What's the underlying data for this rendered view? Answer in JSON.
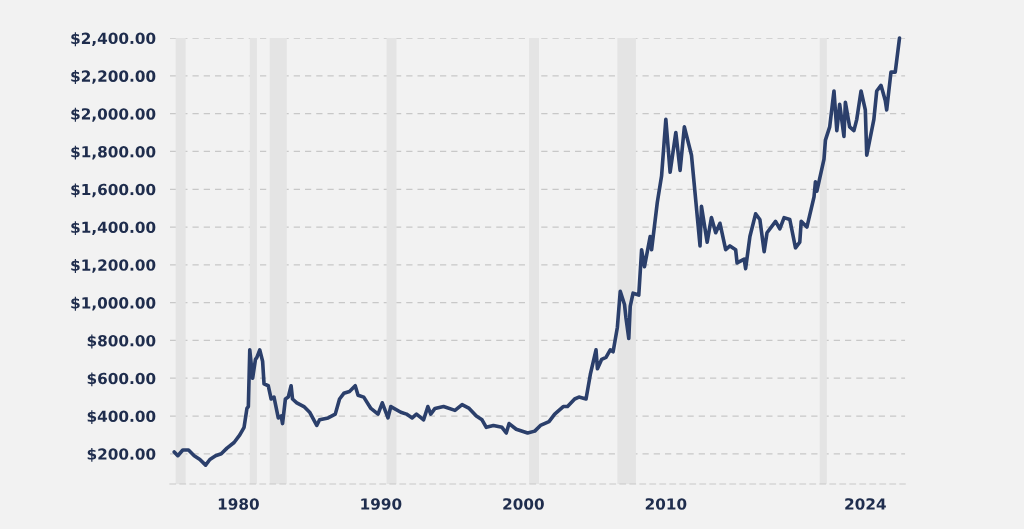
{
  "chart_data": {
    "type": "line",
    "x": [
      1975.5,
      1975.75,
      1976.1,
      1976.5,
      1976.9,
      1977.3,
      1977.7,
      1978.0,
      1978.4,
      1978.8,
      1979.2,
      1979.7,
      1980.1,
      1980.4,
      1980.6,
      1980.7,
      1980.8,
      1981.0,
      1981.2,
      1981.3,
      1981.5,
      1981.7,
      1981.8,
      1982.1,
      1982.3,
      1982.5,
      1982.8,
      1983.0,
      1983.1,
      1983.3,
      1983.5,
      1983.7,
      1983.8,
      1984.1,
      1984.6,
      1985.0,
      1985.5,
      1985.7,
      1986.3,
      1986.8,
      1987.1,
      1987.4,
      1987.8,
      1988.2,
      1988.4,
      1988.8,
      1989.3,
      1989.8,
      1990.1,
      1990.5,
      1990.7,
      1991.4,
      1991.8,
      1992.2,
      1992.5,
      1993.0,
      1993.3,
      1993.5,
      1993.8,
      1994.4,
      1995.2,
      1995.7,
      1996.2,
      1996.7,
      1997.1,
      1997.4,
      1997.9,
      1998.5,
      1998.8,
      1999.0,
      1999.5,
      2000.3,
      2000.8,
      2001.2,
      2001.8,
      2002.2,
      2002.8,
      2003.1,
      2003.6,
      2003.9,
      2004.4,
      2004.7,
      2005.1,
      2005.2,
      2005.5,
      2005.8,
      2006.1,
      2006.3,
      2006.6,
      2006.8,
      2007.1,
      2007.2,
      2007.4,
      2007.5,
      2007.7,
      2008.1,
      2008.3,
      2008.5,
      2008.9,
      2009.0,
      2009.4,
      2009.7,
      2010.0,
      2010.3,
      2010.7,
      2011.0,
      2011.3,
      2011.8,
      2012.4,
      2012.5,
      2012.9,
      2013.2,
      2013.5,
      2013.8,
      2014.2,
      2014.5,
      2014.9,
      2015.0,
      2015.5,
      2015.6,
      2015.9,
      2016.3,
      2016.6,
      2016.9,
      2017.1,
      2017.7,
      2018.0,
      2018.3,
      2018.7,
      2019.1,
      2019.4,
      2019.5,
      2019.9,
      2020.4,
      2020.5,
      2020.6,
      2021.1,
      2021.2,
      2021.5,
      2021.8,
      2022.0,
      2022.2,
      2022.5,
      2022.6,
      2022.9,
      2023.2,
      2023.4,
      2023.7,
      2024.0,
      2024.1,
      2024.6,
      2024.8,
      2025.1,
      2025.4,
      2025.5,
      2025.8,
      2026.1,
      2026.4
    ],
    "series": [
      {
        "color": "#2b3f6b",
        "values": [
          210,
          190,
          220,
          220,
          190,
          170,
          140,
          170,
          190,
          200,
          230,
          260,
          300,
          340,
          440,
          450,
          750,
          600,
          700,
          710,
          750,
          690,
          570,
          560,
          490,
          500,
          390,
          400,
          360,
          490,
          500,
          560,
          490,
          470,
          450,
          420,
          350,
          380,
          390,
          410,
          490,
          520,
          530,
          560,
          510,
          500,
          440,
          410,
          470,
          390,
          450,
          420,
          410,
          390,
          410,
          380,
          450,
          410,
          440,
          450,
          430,
          460,
          440,
          400,
          380,
          340,
          350,
          340,
          310,
          360,
          330,
          310,
          320,
          350,
          370,
          410,
          450,
          450,
          490,
          500,
          490,
          620,
          750,
          650,
          700,
          710,
          750,
          740,
          870,
          1060,
          990,
          920,
          810,
          980,
          1050,
          1040,
          1280,
          1190,
          1350,
          1280,
          1530,
          1670,
          1970,
          1690,
          1900,
          1700,
          1930,
          1780,
          1300,
          1510,
          1320,
          1450,
          1370,
          1420,
          1280,
          1300,
          1280,
          1210,
          1230,
          1180,
          1350,
          1470,
          1440,
          1270,
          1370,
          1430,
          1390,
          1450,
          1440,
          1290,
          1320,
          1430,
          1400,
          1560,
          1640,
          1590,
          1760,
          1860,
          1930,
          2120,
          1910,
          2050,
          1880,
          2060,
          1930,
          1910,
          1970,
          2120,
          2020,
          1780,
          1970,
          2120,
          2150,
          2070,
          2020,
          2220,
          2220,
          2400
        ]
      }
    ],
    "xlim": [
      1975.2,
      2026.8
    ],
    "xticks": [
      1980,
      1990,
      2000,
      2010,
      2024
    ],
    "ylim": [
      40,
      2400
    ],
    "yticks": [
      {
        "value": 200,
        "label": "$200.00"
      },
      {
        "value": 400,
        "label": "$400.00"
      },
      {
        "value": 600,
        "label": "$600.00"
      },
      {
        "value": 800,
        "label": "$800.00"
      },
      {
        "value": 1000,
        "label": "$1,000.00"
      },
      {
        "value": 1200,
        "label": "$1,200.00"
      },
      {
        "value": 1400,
        "label": "$1,400.00"
      },
      {
        "value": 1600,
        "label": "$1,600.00"
      },
      {
        "value": 1800,
        "label": "$1,800.00"
      },
      {
        "value": 2000,
        "label": "$2,000.00"
      },
      {
        "value": 2200,
        "label": "$2,200.00"
      },
      {
        "value": 2400,
        "label": "$2,400.00"
      }
    ],
    "bands": [
      {
        "axis": "x",
        "from": 1975.6,
        "to": 1976.3,
        "color": "#e4e4e4"
      },
      {
        "axis": "x",
        "from": 1980.8,
        "to": 1981.3,
        "color": "#e4e4e4"
      },
      {
        "axis": "x",
        "from": 1982.2,
        "to": 1983.4,
        "color": "#e4e4e4"
      },
      {
        "axis": "x",
        "from": 1990.4,
        "to": 1991.1,
        "color": "#e4e4e4"
      },
      {
        "axis": "x",
        "from": 2000.4,
        "to": 2001.1,
        "color": "#e4e4e4"
      },
      {
        "axis": "x",
        "from": 2006.6,
        "to": 2007.9,
        "color": "#e4e4e4"
      },
      {
        "axis": "x",
        "from": 2020.8,
        "to": 2021.3,
        "color": "#e4e4e4"
      }
    ],
    "grid": "y",
    "marker": "none",
    "line_style": "solid",
    "legend": false
  }
}
